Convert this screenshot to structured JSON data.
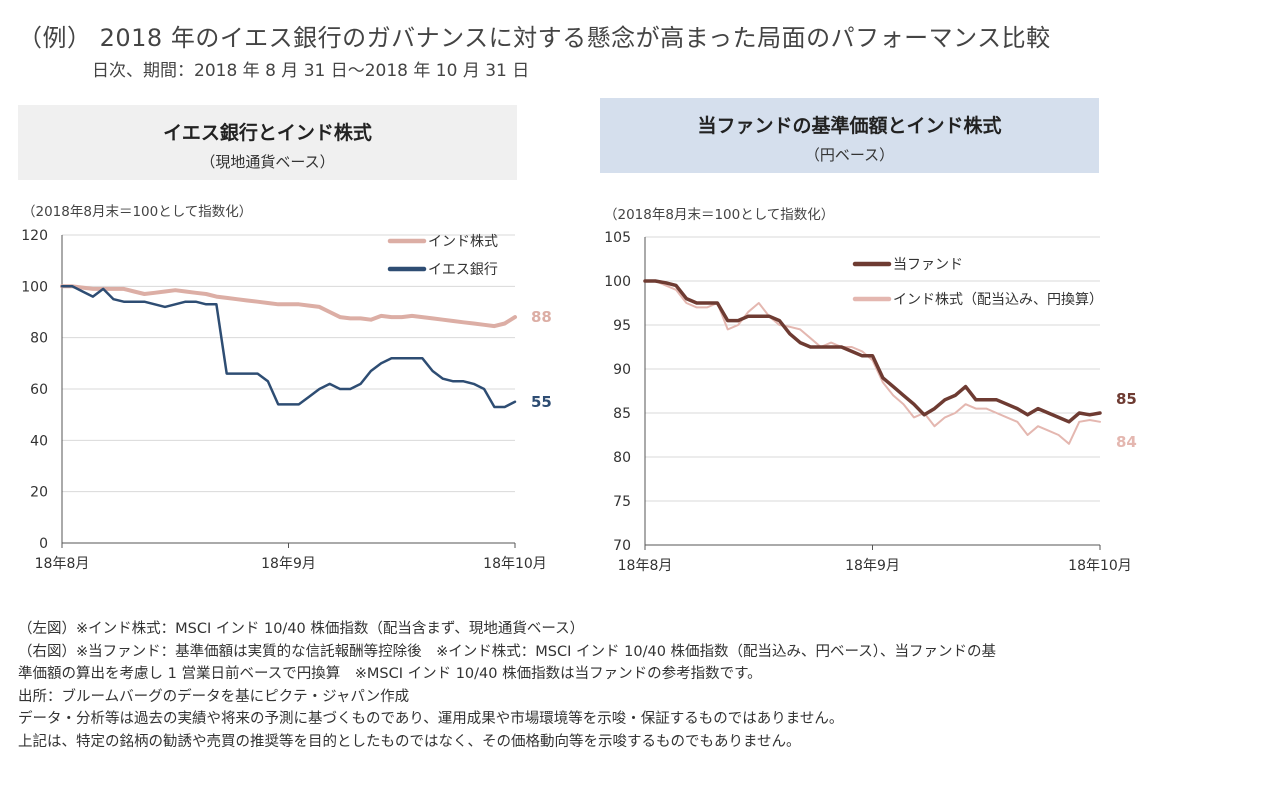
{
  "title": "（例） 2018 年のイエス銀行のガバナンスに対する懸念が高まった局面のパフォーマンス比較",
  "subtitle": "日次、期間：2018 年 8 月 31 日～2018 年 10 月 31 日",
  "left_panel": {
    "header": "イエス銀行とインド株式",
    "subheader": "（現地通貨ベース）"
  },
  "right_panel": {
    "header": "当ファンドの基準価額とインド株式",
    "subheader": "（円ベース）"
  },
  "colors": {
    "india": "#dcaea5",
    "yes_bank": "#2e4d73",
    "fund": "#6e3b32",
    "india_jpy": "#e4b7b0"
  },
  "chart_data": [
    {
      "type": "line",
      "note": "（2018年8月末＝100として指数化）",
      "ylim": [
        0,
        120
      ],
      "yticks": [
        0,
        20,
        40,
        60,
        80,
        100,
        120
      ],
      "xlim": [
        0,
        44
      ],
      "xticks": [
        {
          "x": 0,
          "label": "18年8月"
        },
        {
          "x": 22,
          "label": "18年9月"
        },
        {
          "x": 44,
          "label": "18年10月"
        }
      ],
      "series": [
        {
          "name": "インド株式",
          "color": "#dcaea5",
          "end_label": "88",
          "values": [
            100,
            100,
            99.5,
            99,
            99,
            99,
            99,
            98,
            97,
            97.5,
            98,
            98.5,
            98,
            97.5,
            97,
            96,
            95.5,
            95,
            94.5,
            94,
            93.5,
            93,
            93,
            93,
            92.5,
            92,
            90,
            88,
            87.5,
            87.5,
            87,
            88.5,
            88,
            88,
            88.5,
            88,
            87.5,
            87,
            86.5,
            86,
            85.5,
            85,
            84.5,
            85.5,
            88
          ]
        },
        {
          "name": "イエス銀行",
          "color": "#2e4d73",
          "end_label": "55",
          "values": [
            100,
            100,
            98,
            96,
            99,
            95,
            94,
            94,
            94,
            93,
            92,
            93,
            94,
            94,
            93,
            93,
            66,
            66,
            66,
            66,
            63,
            54,
            54,
            54,
            57,
            60,
            62,
            60,
            60,
            62,
            67,
            70,
            72,
            72,
            72,
            72,
            67,
            64,
            63,
            63,
            62,
            60,
            53,
            53,
            55
          ]
        }
      ]
    },
    {
      "type": "line",
      "note": "（2018年8月末＝100として指数化）",
      "ylim": [
        70,
        105
      ],
      "yticks": [
        70,
        75,
        80,
        85,
        90,
        95,
        100,
        105
      ],
      "xlim": [
        0,
        44
      ],
      "xticks": [
        {
          "x": 0,
          "label": "18年8月"
        },
        {
          "x": 22,
          "label": "18年9月"
        },
        {
          "x": 44,
          "label": "18年10月"
        }
      ],
      "series": [
        {
          "name": "当ファンド",
          "color": "#6e3b32",
          "end_label": "85",
          "values": [
            100,
            100,
            99.8,
            99.5,
            98,
            97.5,
            97.5,
            97.5,
            95.5,
            95.5,
            96,
            96,
            96,
            95.5,
            94,
            93,
            92.5,
            92.5,
            92.5,
            92.5,
            92,
            91.5,
            91.5,
            89,
            88,
            87,
            86,
            84.8,
            85.5,
            86.5,
            87,
            88,
            86.5,
            86.5,
            86.5,
            86,
            85.5,
            84.8,
            85.5,
            85,
            84.5,
            84,
            85,
            84.8,
            85
          ]
        },
        {
          "name": "インド株式（配当込み、円換算）",
          "color": "#e4b7b0",
          "end_label": "84",
          "values": [
            100,
            100,
            99.5,
            99,
            97.5,
            97,
            97,
            97.5,
            94.5,
            95,
            96.5,
            97.5,
            96,
            95,
            94.8,
            94.5,
            93.5,
            92.5,
            93,
            92.5,
            92.5,
            92,
            91,
            88.5,
            87,
            86,
            84.5,
            85,
            83.5,
            84.5,
            85,
            86,
            85.5,
            85.5,
            85,
            84.5,
            84,
            82.5,
            83.5,
            83,
            82.5,
            81.5,
            84,
            84.2,
            84
          ]
        }
      ]
    }
  ],
  "notes": [
    "（左図）※インド株式：MSCI インド 10/40 株価指数（配当含まず、現地通貨ベース）",
    "（右図）※当ファンド：基準価額は実質的な信託報酬等控除後　※インド株式：MSCI インド 10/40 株価指数（配当込み、円ベース）、当ファンドの基",
    "準価額の算出を考慮し 1 営業日前ベースで円換算　※MSCI インド 10/40 株価指数は当ファンドの参考指数です。",
    "出所：ブルームバーグのデータを基にピクテ・ジャパン作成",
    "データ・分析等は過去の実績や将来の予測に基づくものであり、運用成果や市場環境等を示唆・保証するものではありません。",
    "上記は、特定の銘柄の勧誘や売買の推奨等を目的としたものではなく、その価格動向等を示唆するものでもありません。"
  ]
}
